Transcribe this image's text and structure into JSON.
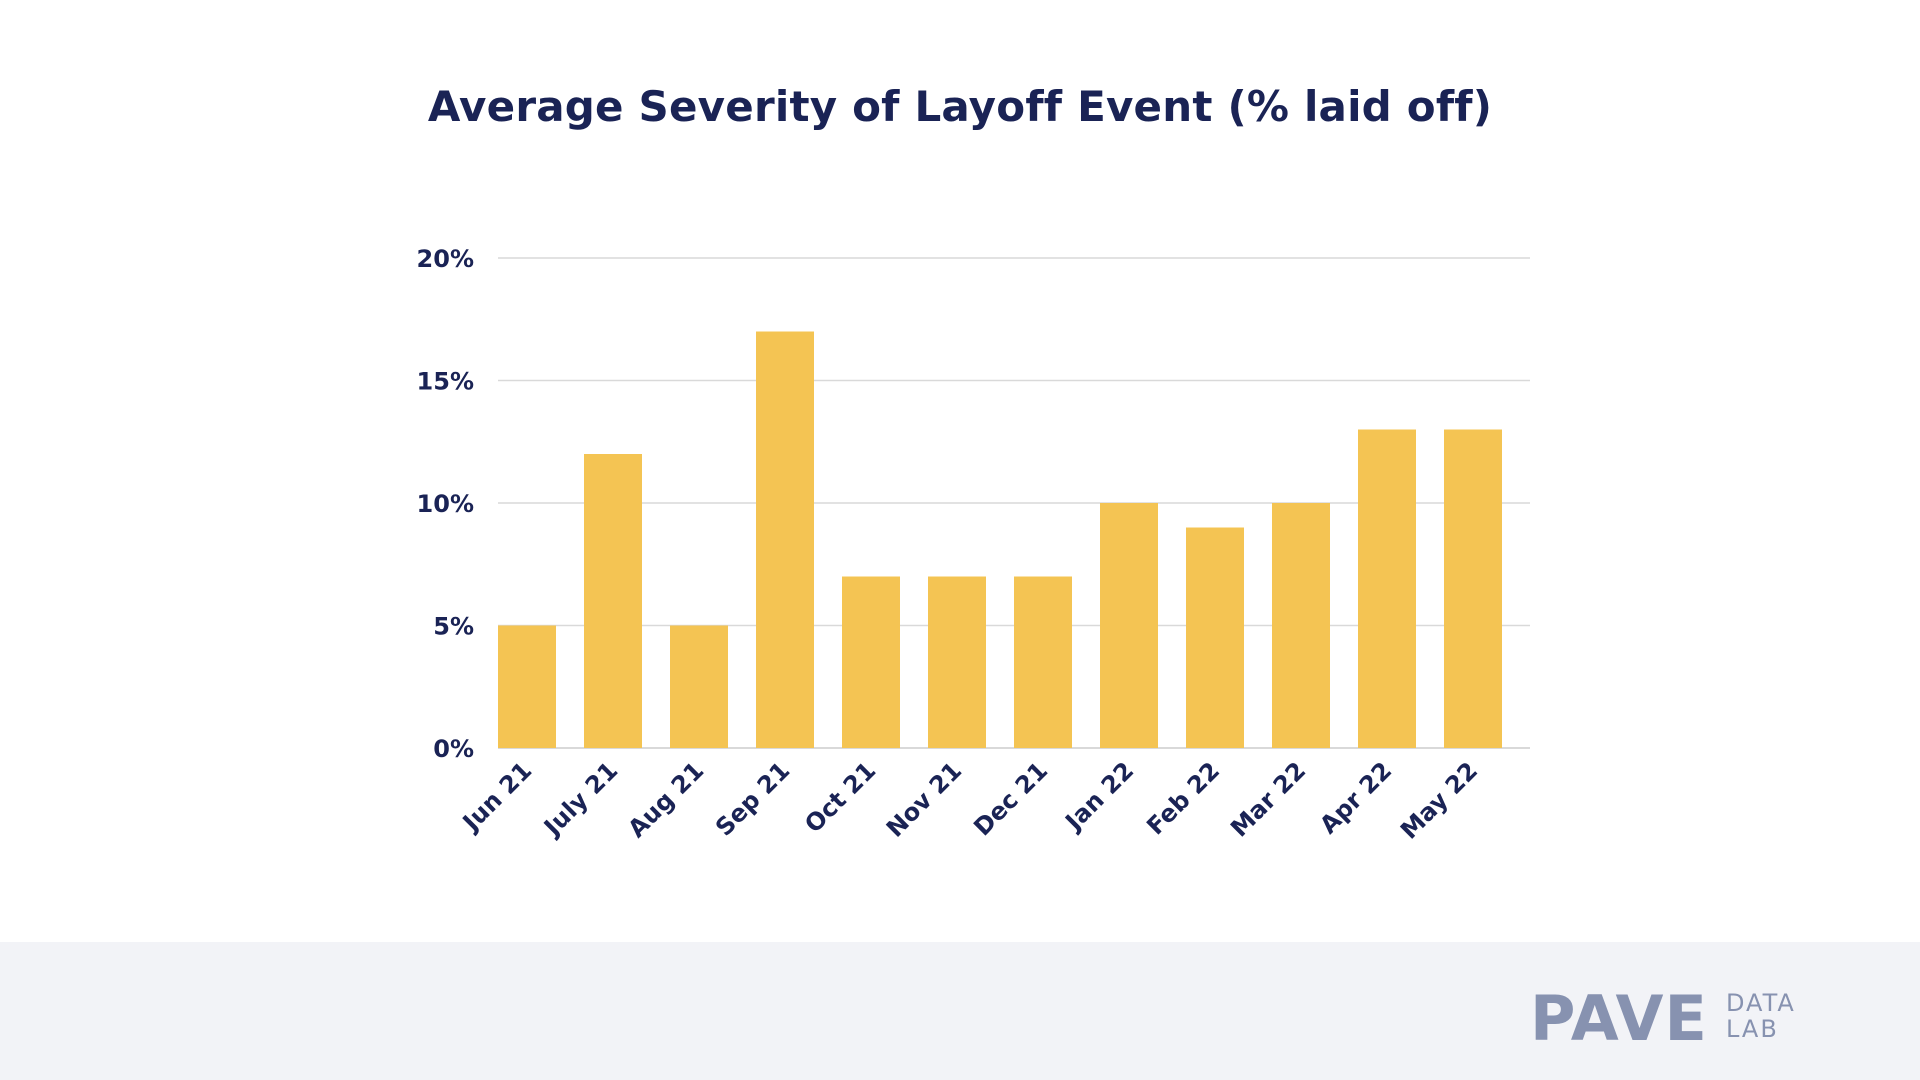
{
  "chart_data": {
    "type": "bar",
    "title": "Average Severity of Layoff Event (% laid off)",
    "categories": [
      "Jun 21",
      "July 21",
      "Aug 21",
      "Sep 21",
      "Oct 21",
      "Nov 21",
      "Dec 21",
      "Jan 22",
      "Feb 22",
      "Mar 22",
      "Apr 22",
      "May 22"
    ],
    "values": [
      5,
      12,
      5,
      17,
      7,
      7,
      7,
      10,
      9,
      10,
      13,
      13
    ],
    "ylim": [
      0,
      20
    ],
    "yticks": [
      0,
      5,
      10,
      15,
      20
    ],
    "ytick_labels": [
      "0%",
      "5%",
      "10%",
      "15%",
      "20%"
    ],
    "xlabel": "",
    "ylabel": "",
    "grid": true,
    "bar_color": "#f4c453",
    "grid_color": "#d9d9d9",
    "text_color": "#1a2355"
  },
  "footer": {
    "background": "#f2f3f7",
    "logo": {
      "main": "PAVE",
      "sub_top": "DATA",
      "sub_bottom": "LAB",
      "color": "#8792b0"
    }
  }
}
